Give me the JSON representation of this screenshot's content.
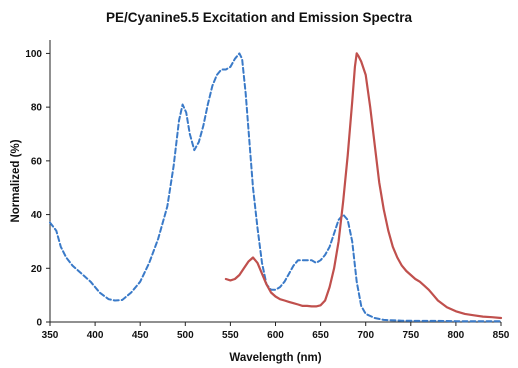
{
  "chart_data": {
    "type": "line",
    "title": "PE/Cyanine5.5 Excitation and Emission Spectra",
    "xlabel": "Wavelength (nm)",
    "ylabel": "Normalized (%)",
    "xlim": [
      350,
      850
    ],
    "ylim": [
      0,
      105
    ],
    "xticks": [
      350,
      400,
      450,
      500,
      550,
      600,
      650,
      700,
      750,
      800,
      850
    ],
    "yticks": [
      0,
      20,
      40,
      60,
      80,
      100
    ],
    "grid": false,
    "legend": "none",
    "series": [
      {
        "style": "dashed",
        "color": "#3a7ac8",
        "x": [
          350,
          357,
          362,
          368,
          375,
          385,
          395,
          405,
          415,
          422,
          430,
          440,
          450,
          460,
          470,
          480,
          487,
          493,
          497,
          501,
          505,
          510,
          515,
          520,
          525,
          530,
          535,
          540,
          545,
          550,
          555,
          560,
          563,
          567,
          570,
          575,
          580,
          585,
          590,
          595,
          600,
          605,
          610,
          615,
          620,
          625,
          630,
          635,
          640,
          645,
          650,
          655,
          660,
          665,
          670,
          675,
          680,
          685,
          690,
          695,
          700,
          710,
          720,
          740,
          760,
          780,
          800,
          820,
          840,
          850
        ],
        "y": [
          37,
          34,
          28,
          24,
          21,
          18,
          15,
          11,
          8.5,
          8,
          8.2,
          11,
          15,
          22,
          31,
          43,
          58,
          75,
          81,
          78,
          70,
          64,
          67,
          73,
          81,
          88,
          92,
          94,
          94,
          95,
          98,
          100,
          98,
          85,
          72,
          50,
          35,
          22,
          14,
          12,
          12,
          13,
          15,
          18,
          21,
          23,
          23,
          23,
          23,
          22,
          23,
          25,
          28,
          33,
          38,
          40,
          38,
          30,
          15,
          6,
          3,
          1.5,
          0.8,
          0.5,
          0.4,
          0.4,
          0.3,
          0.3,
          0.3,
          0.3
        ]
      },
      {
        "style": "solid",
        "color": "#c0504d",
        "x": [
          545,
          550,
          555,
          560,
          565,
          570,
          575,
          580,
          585,
          590,
          595,
          600,
          605,
          610,
          615,
          620,
          625,
          630,
          635,
          640,
          645,
          650,
          655,
          660,
          665,
          670,
          675,
          680,
          685,
          688,
          690,
          692,
          695,
          700,
          705,
          710,
          715,
          720,
          725,
          730,
          735,
          740,
          745,
          750,
          755,
          760,
          765,
          770,
          775,
          780,
          790,
          800,
          810,
          820,
          830,
          840,
          850
        ],
        "y": [
          16,
          15.5,
          16,
          17.5,
          20,
          22.5,
          24,
          22,
          18,
          14,
          11,
          9.5,
          8.5,
          8,
          7.5,
          7,
          6.5,
          6,
          6,
          5.8,
          5.8,
          6.2,
          8,
          13,
          20,
          30,
          45,
          62,
          82,
          95,
          100,
          99,
          97,
          92,
          80,
          66,
          52,
          42,
          34,
          28,
          24,
          21,
          19,
          17.5,
          16,
          15,
          13.5,
          12,
          10,
          8,
          5.5,
          4,
          3,
          2.5,
          2,
          1.8,
          1.5
        ]
      }
    ]
  }
}
